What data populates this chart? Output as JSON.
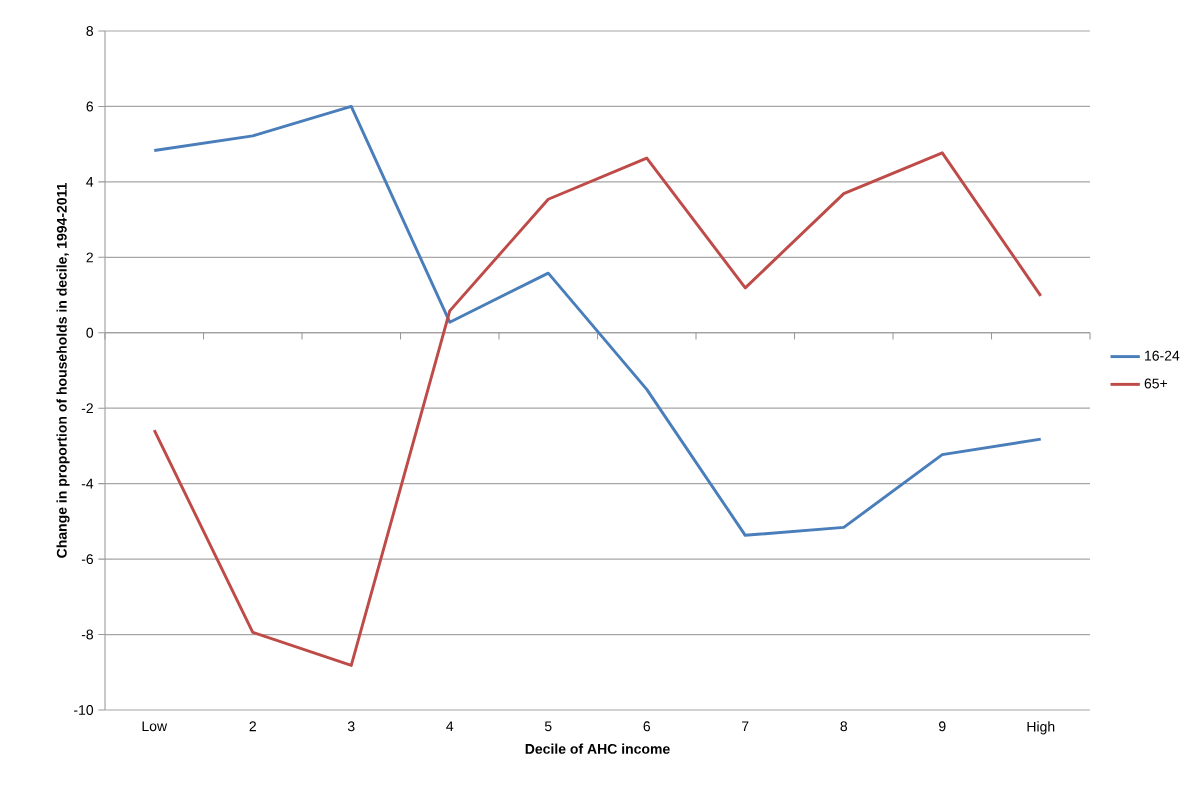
{
  "chart_data": {
    "type": "line",
    "xlabel": "Decile of AHC income",
    "ylabel": "Change in proportion of households in decile, 1994-2011",
    "categories": [
      "Low",
      "2",
      "3",
      "4",
      "5",
      "6",
      "7",
      "8",
      "9",
      "High"
    ],
    "series": [
      {
        "name": "16-24",
        "color": "#4a7ebb",
        "values": [
          4.83,
          5.22,
          6.0,
          0.28,
          1.58,
          -1.5,
          -5.37,
          -5.16,
          -3.23,
          -2.82
        ]
      },
      {
        "name": "65+",
        "color": "#be4b48",
        "values": [
          -2.58,
          -7.94,
          -8.82,
          0.58,
          3.54,
          4.63,
          1.19,
          3.69,
          4.77,
          0.98
        ]
      }
    ],
    "ylim": [
      -10,
      8
    ],
    "yticks": [
      -10,
      -8,
      -6,
      -4,
      -2,
      0,
      2,
      4,
      6,
      8
    ],
    "grid": "y",
    "legend": "right",
    "marker": "none",
    "line_style": "solid"
  }
}
